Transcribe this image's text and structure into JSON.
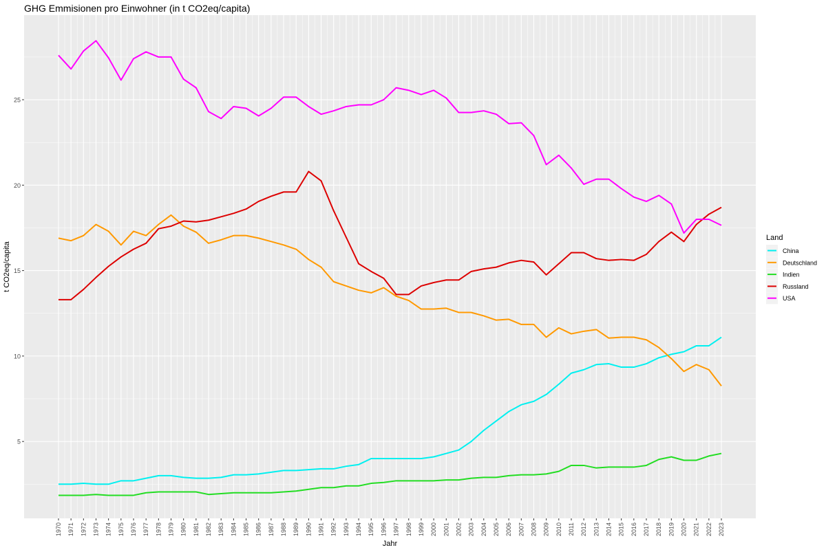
{
  "chart_data": {
    "type": "line",
    "title": "GHG Emmisionen pro Einwohner (in t CO2eq/capita)",
    "xlabel": "Jahr",
    "ylabel": "t CO2eq/capita",
    "xlim": [
      1967.25,
      2025.75
    ],
    "ylim": [
      0.5,
      29.95
    ],
    "yticks": [
      5,
      10,
      15,
      20,
      25
    ],
    "xticks": [
      1970,
      1971,
      1972,
      1973,
      1974,
      1975,
      1976,
      1977,
      1978,
      1979,
      1980,
      1981,
      1982,
      1983,
      1984,
      1985,
      1986,
      1987,
      1988,
      1989,
      1990,
      1991,
      1992,
      1993,
      1994,
      1995,
      1996,
      1997,
      1998,
      1999,
      2000,
      2001,
      2002,
      2003,
      2004,
      2005,
      2006,
      2007,
      2008,
      2009,
      2010,
      2011,
      2012,
      2013,
      2014,
      2015,
      2016,
      2017,
      2018,
      2019,
      2020,
      2021,
      2022,
      2023
    ],
    "grid": true,
    "legend": {
      "title": "Land",
      "position": "right"
    },
    "x": [
      1970,
      1971,
      1972,
      1973,
      1974,
      1975,
      1976,
      1977,
      1978,
      1979,
      1980,
      1981,
      1982,
      1983,
      1984,
      1985,
      1986,
      1987,
      1988,
      1989,
      1990,
      1991,
      1992,
      1993,
      1994,
      1995,
      1996,
      1997,
      1998,
      1999,
      2000,
      2001,
      2002,
      2003,
      2004,
      2005,
      2006,
      2007,
      2008,
      2009,
      2010,
      2011,
      2012,
      2013,
      2014,
      2015,
      2016,
      2017,
      2018,
      2019,
      2020,
      2021,
      2022,
      2023
    ],
    "series": [
      {
        "name": "China",
        "color": "#00F0F0",
        "values": [
          2.5,
          2.5,
          2.55,
          2.5,
          2.5,
          2.7,
          2.7,
          2.85,
          3.0,
          3.0,
          2.9,
          2.85,
          2.85,
          2.9,
          3.05,
          3.05,
          3.1,
          3.2,
          3.3,
          3.3,
          3.35,
          3.4,
          3.4,
          3.55,
          3.65,
          4.0,
          4.0,
          4.0,
          4.0,
          4.0,
          4.1,
          4.3,
          4.5,
          5.0,
          5.65,
          6.2,
          6.75,
          7.15,
          7.35,
          7.75,
          8.35,
          9.0,
          9.2,
          9.5,
          9.55,
          9.35,
          9.35,
          9.55,
          9.9,
          10.1,
          10.25,
          10.6,
          10.6,
          11.1
        ]
      },
      {
        "name": "Deutschland",
        "color": "#FF9900",
        "values": [
          16.9,
          16.75,
          17.05,
          17.7,
          17.3,
          16.5,
          17.3,
          17.05,
          17.7,
          18.25,
          17.6,
          17.25,
          16.6,
          16.8,
          17.05,
          17.05,
          16.9,
          16.7,
          16.5,
          16.25,
          15.65,
          15.2,
          14.35,
          14.1,
          13.85,
          13.7,
          14.0,
          13.5,
          13.25,
          12.75,
          12.75,
          12.8,
          12.55,
          12.55,
          12.35,
          12.1,
          12.15,
          11.85,
          11.85,
          11.1,
          11.65,
          11.3,
          11.45,
          11.55,
          11.05,
          11.1,
          11.1,
          10.95,
          10.5,
          9.85,
          9.1,
          9.5,
          9.2,
          8.25
        ]
      },
      {
        "name": "Indien",
        "color": "#22DD22",
        "values": [
          1.85,
          1.85,
          1.85,
          1.9,
          1.85,
          1.85,
          1.85,
          2.0,
          2.05,
          2.05,
          2.05,
          2.05,
          1.9,
          1.95,
          2.0,
          2.0,
          2.0,
          2.0,
          2.05,
          2.1,
          2.2,
          2.3,
          2.3,
          2.4,
          2.4,
          2.55,
          2.6,
          2.7,
          2.7,
          2.7,
          2.7,
          2.75,
          2.75,
          2.85,
          2.9,
          2.9,
          3.0,
          3.05,
          3.05,
          3.1,
          3.25,
          3.6,
          3.6,
          3.45,
          3.5,
          3.5,
          3.5,
          3.6,
          3.95,
          4.1,
          3.9,
          3.9,
          4.15,
          4.3
        ]
      },
      {
        "name": "Russland",
        "color": "#DD0000",
        "values": [
          13.3,
          13.3,
          13.9,
          14.6,
          15.25,
          15.8,
          16.25,
          16.6,
          17.45,
          17.6,
          17.9,
          17.85,
          17.95,
          18.15,
          18.35,
          18.6,
          19.05,
          19.35,
          19.6,
          19.6,
          20.8,
          20.25,
          18.5,
          16.95,
          15.4,
          14.95,
          14.55,
          13.6,
          13.6,
          14.1,
          14.3,
          14.45,
          14.45,
          14.95,
          15.1,
          15.2,
          15.45,
          15.6,
          15.5,
          14.75,
          15.4,
          16.05,
          16.05,
          15.7,
          15.6,
          15.65,
          15.6,
          15.95,
          16.7,
          17.25,
          16.7,
          17.7,
          18.3,
          18.7
        ]
      },
      {
        "name": "USA",
        "color": "#FF00FF",
        "values": [
          27.6,
          26.8,
          27.85,
          28.45,
          27.45,
          26.15,
          27.4,
          27.8,
          27.5,
          27.5,
          26.2,
          25.7,
          24.3,
          23.9,
          24.6,
          24.5,
          24.05,
          24.5,
          25.15,
          25.15,
          24.6,
          24.15,
          24.35,
          24.6,
          24.7,
          24.7,
          25.0,
          25.7,
          25.55,
          25.3,
          25.55,
          25.1,
          24.25,
          24.25,
          24.35,
          24.15,
          23.6,
          23.65,
          22.9,
          21.2,
          21.75,
          21.0,
          20.05,
          20.35,
          20.35,
          19.8,
          19.3,
          19.05,
          19.4,
          18.9,
          17.2,
          18.0,
          18.0,
          17.65
        ]
      }
    ]
  }
}
